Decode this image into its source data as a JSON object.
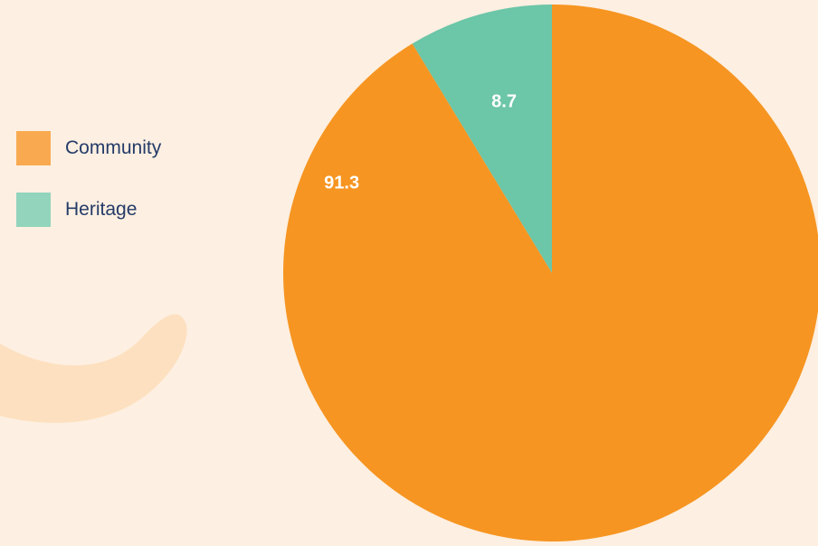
{
  "chart_data": {
    "type": "pie",
    "categories": [
      "Community",
      "Heritage"
    ],
    "values": [
      91.3,
      8.7
    ],
    "data_labels": [
      "91.3",
      "8.7"
    ],
    "colors": [
      "#f69521",
      "#6cc6a8"
    ],
    "legend_colors": [
      "#f9aa50",
      "#92d4bc"
    ],
    "legend_placement": "left",
    "start_angle": "12 o'clock",
    "direction": "counterclockwise"
  },
  "legend": {
    "items": [
      {
        "label": "Community",
        "color": "#f9aa50"
      },
      {
        "label": "Heritage",
        "color": "#92d4bc"
      }
    ]
  },
  "decoration": {
    "background": "#fdefe1",
    "shape_color": "#fde0bf"
  }
}
